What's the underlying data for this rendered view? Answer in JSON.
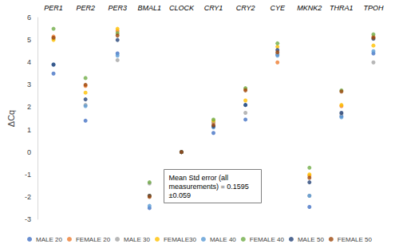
{
  "chart_data": {
    "type": "scatter",
    "y_label": "ΔCq",
    "categories": [
      "PER1",
      "PER2",
      "PER3",
      "BMAL1",
      "CLOCK",
      "CRY1",
      "CRY2",
      "CYE",
      "MKNK2",
      "THRA1",
      "TPOH"
    ],
    "series": [
      {
        "name": "MALE 20",
        "color": "#4472c4",
        "values": [
          3.5,
          1.4,
          4.4,
          -2.5,
          0,
          0.85,
          1.45,
          4.35,
          -2.45,
          1.6,
          4.4
        ]
      },
      {
        "name": "FEMALE 20",
        "color": "#ed7d31",
        "values": [
          5.15,
          2.95,
          5.4,
          -1.95,
          0,
          1.3,
          2.8,
          4.0,
          -1.05,
          2.05,
          5.15
        ]
      },
      {
        "name": "MALE 30",
        "color": "#a5a5a5",
        "values": [
          5.05,
          2.1,
          4.1,
          -1.4,
          0,
          1.35,
          1.75,
          4.4,
          -1.95,
          1.7,
          4.0
        ]
      },
      {
        "name": "FEMALE30",
        "color": "#ffc000",
        "values": [
          5.0,
          2.65,
          5.5,
          -1.95,
          0,
          1.4,
          2.3,
          4.7,
          -1.0,
          2.1,
          4.75
        ]
      },
      {
        "name": "MALE 40",
        "color": "#5b9bd5",
        "values": [
          3.9,
          2.05,
          4.3,
          -2.4,
          0,
          1.1,
          2.1,
          4.3,
          -1.95,
          1.55,
          4.5
        ]
      },
      {
        "name": "FEMALE 40",
        "color": "#70ad47",
        "values": [
          5.5,
          3.3,
          5.3,
          -1.35,
          0,
          1.45,
          2.85,
          4.85,
          -0.7,
          2.75,
          5.25
        ]
      },
      {
        "name": "MALE 50",
        "color": "#264478",
        "values": [
          3.9,
          2.35,
          5.0,
          -1.95,
          0,
          1.15,
          2.1,
          4.55,
          -1.35,
          1.75,
          5.05
        ]
      },
      {
        "name": "FEMALE 50",
        "color": "#9e480e",
        "values": [
          5.1,
          3.0,
          5.2,
          -2.0,
          0,
          1.2,
          2.75,
          4.45,
          -1.15,
          2.7,
          5.1
        ]
      }
    ],
    "annotations": [
      "Mean Std error (all measurements) = 0.1595 ±0.059"
    ],
    "ylim": [
      -3,
      6
    ],
    "yticks": [
      -3,
      -2,
      -1,
      0,
      1,
      2,
      3,
      4,
      5,
      6
    ],
    "grid": false,
    "legend": "bottom",
    "marker": "circle"
  }
}
